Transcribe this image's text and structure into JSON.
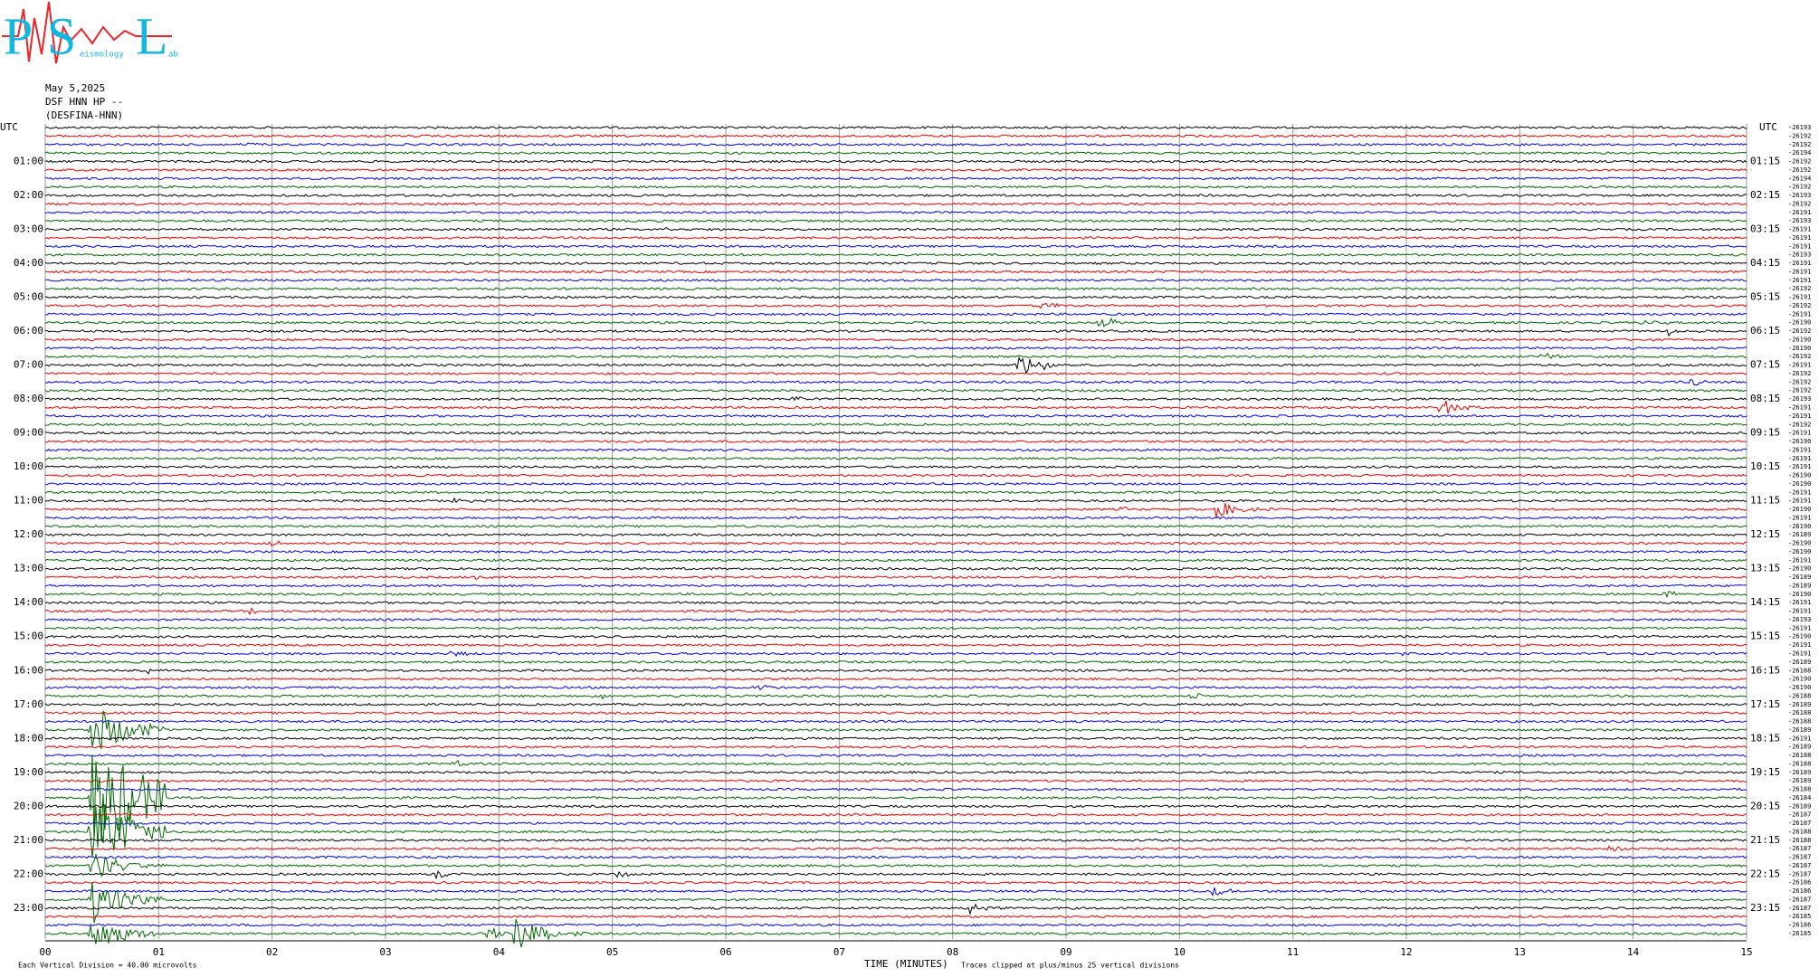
{
  "logo": {
    "letters": [
      "P",
      "S",
      "L"
    ],
    "small": [
      "eismology",
      "ab"
    ]
  },
  "header": {
    "date": "May 5,2025",
    "station": "DSF HNN HP --",
    "name": "(DESFINA-HNN)"
  },
  "left_axis": {
    "title": "UTC",
    "labels": [
      "01:00",
      "02:00",
      "03:00",
      "04:00",
      "05:00",
      "06:00",
      "07:00",
      "08:00",
      "09:00",
      "10:00",
      "11:00",
      "12:00",
      "13:00",
      "14:00",
      "15:00",
      "16:00",
      "17:00",
      "18:00",
      "19:00",
      "20:00",
      "21:00",
      "22:00",
      "23:00"
    ]
  },
  "right_axis": {
    "title": "UTC",
    "labels": [
      "01:15",
      "02:15",
      "03:15",
      "04:15",
      "05:15",
      "06:15",
      "07:15",
      "08:15",
      "09:15",
      "10:15",
      "11:15",
      "12:15",
      "13:15",
      "14:15",
      "15:15",
      "16:15",
      "17:15",
      "18:15",
      "19:15",
      "20:15",
      "21:15",
      "22:15",
      "23:15"
    ]
  },
  "trace_offsets": [
    "-26193",
    "-26192",
    "-26192",
    "-26194",
    "-26192",
    "-26192",
    "-26194",
    "-26192",
    "-26193",
    "-26192",
    "-26191",
    "-26193",
    "-26191",
    "-26191",
    "-26191",
    "-26193",
    "-26191",
    "-26191",
    "-26191",
    "-26192",
    "-26191",
    "-26192",
    "-26191",
    "-26190",
    "-26192",
    "-26190",
    "-26190",
    "-26192",
    "-26191",
    "-26192",
    "-26192",
    "-26192",
    "-26193",
    "-26191",
    "-26191",
    "-26192",
    "-26191",
    "-26190",
    "-26191",
    "-26191",
    "-26191",
    "-26190",
    "-26190",
    "-26191",
    "-26191",
    "-26190",
    "-26191",
    "-26190",
    "-26189",
    "-26190",
    "-26190",
    "-26191",
    "-26190",
    "-26189",
    "-26189",
    "-26190",
    "-26191",
    "-26191",
    "-26193",
    "-26191",
    "-26190",
    "-26191",
    "-26191",
    "-26189",
    "-26188",
    "-26190",
    "-26190",
    "-26188",
    "-26189",
    "-26188",
    "-26188",
    "-26189",
    "-26191",
    "-26189",
    "-26188",
    "-26188",
    "-26189",
    "-26189",
    "-26188",
    "-26184",
    "-26189",
    "-26187",
    "-26187",
    "-26188",
    "-26188",
    "-26187",
    "-26187",
    "-26187",
    "-26187",
    "-26186",
    "-26186",
    "-26187",
    "-26187",
    "-26185",
    "-26186",
    "-26185"
  ],
  "x_axis": {
    "title": "TIME (MINUTES)",
    "labels": [
      "00",
      "01",
      "02",
      "03",
      "04",
      "05",
      "06",
      "07",
      "08",
      "09",
      "10",
      "11",
      "12",
      "13",
      "14",
      "15"
    ]
  },
  "footer": {
    "scale": "Each Vertical Division =   40.00 microvolts",
    "clip": "Traces clipped at plus/minus 25 vertical divisions"
  }
}
